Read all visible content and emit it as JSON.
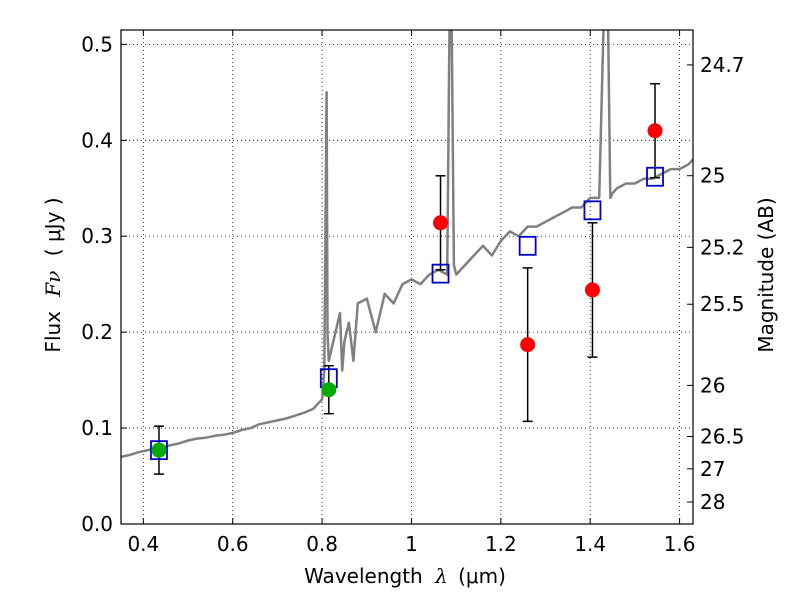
{
  "chart_data": {
    "type": "scatter",
    "xlabel_text": "Wavelength",
    "xlabel_symbol": "λ",
    "xlabel_unit": "(μm)",
    "ylabel_text": "Flux",
    "ylabel_symbol": "Fν",
    "ylabel_unit": "( μJy )",
    "y2label": "Magnitude (AB)",
    "xlim": [
      0.35,
      1.63
    ],
    "ylim": [
      0.0,
      0.515
    ],
    "grid": true,
    "x_ticks": [
      0.4,
      0.6,
      0.8,
      1.0,
      1.2,
      1.4,
      1.6
    ],
    "x_tick_labels": [
      "0.4",
      "0.6",
      "0.8",
      "1",
      "1.2",
      "1.4",
      "1.6"
    ],
    "y_ticks": [
      0.0,
      0.1,
      0.2,
      0.3,
      0.4,
      0.5
    ],
    "y_tick_labels": [
      "0.0",
      "0.1",
      "0.2",
      "0.3",
      "0.4",
      "0.5"
    ],
    "y2_ticks": [
      {
        "flux": 0.4786,
        "label": "24.7"
      },
      {
        "flux": 0.3631,
        "label": "25"
      },
      {
        "flux": 0.2884,
        "label": "25.2"
      },
      {
        "flux": 0.2291,
        "label": "25.5"
      },
      {
        "flux": 0.1445,
        "label": "26"
      },
      {
        "flux": 0.0912,
        "label": "26.5"
      },
      {
        "flux": 0.0575,
        "label": "27"
      },
      {
        "flux": 0.0229,
        "label": "28"
      }
    ],
    "colors": {
      "model": "#808080",
      "model_points": "#0000cc",
      "detections": "#ff0000",
      "reference": "#00aa00",
      "errorbar": "#000000"
    },
    "series": [
      {
        "role": "model spectrum",
        "x": [
          0.35,
          0.37,
          0.39,
          0.4,
          0.42,
          0.44,
          0.46,
          0.48,
          0.5,
          0.52,
          0.54,
          0.56,
          0.58,
          0.6,
          0.62,
          0.64,
          0.66,
          0.68,
          0.7,
          0.72,
          0.74,
          0.76,
          0.78,
          0.79,
          0.8,
          0.805,
          0.81,
          0.812,
          0.815,
          0.82,
          0.83,
          0.84,
          0.845,
          0.85,
          0.86,
          0.87,
          0.88,
          0.9,
          0.92,
          0.94,
          0.96,
          0.98,
          1.0,
          1.02,
          1.04,
          1.06,
          1.08,
          1.085,
          1.09,
          1.095,
          1.1,
          1.12,
          1.14,
          1.16,
          1.18,
          1.2,
          1.22,
          1.24,
          1.26,
          1.28,
          1.3,
          1.32,
          1.34,
          1.36,
          1.38,
          1.4,
          1.42,
          1.43,
          1.44,
          1.445,
          1.45,
          1.46,
          1.48,
          1.5,
          1.52,
          1.54,
          1.56,
          1.58,
          1.6,
          1.62,
          1.63
        ],
        "y": [
          0.07,
          0.072,
          0.075,
          0.076,
          0.078,
          0.08,
          0.082,
          0.084,
          0.087,
          0.089,
          0.09,
          0.092,
          0.093,
          0.095,
          0.098,
          0.1,
          0.104,
          0.106,
          0.108,
          0.11,
          0.113,
          0.116,
          0.12,
          0.125,
          0.13,
          0.16,
          0.45,
          0.2,
          0.17,
          0.18,
          0.2,
          0.22,
          0.16,
          0.19,
          0.21,
          0.17,
          0.23,
          0.235,
          0.2,
          0.24,
          0.23,
          0.25,
          0.255,
          0.25,
          0.26,
          0.265,
          0.26,
          0.52,
          0.52,
          0.27,
          0.26,
          0.27,
          0.28,
          0.29,
          0.28,
          0.295,
          0.305,
          0.3,
          0.31,
          0.31,
          0.315,
          0.32,
          0.325,
          0.33,
          0.33,
          0.34,
          0.34,
          0.52,
          0.52,
          0.34,
          0.345,
          0.35,
          0.355,
          0.355,
          0.36,
          0.36,
          0.365,
          0.37,
          0.37,
          0.375,
          0.38
        ]
      },
      {
        "role": "model band fluxes",
        "x": [
          0.435,
          0.815,
          1.065,
          1.26,
          1.405,
          1.545
        ],
        "y": [
          0.077,
          0.152,
          0.261,
          0.29,
          0.327,
          0.362
        ]
      },
      {
        "role": "detections",
        "x": [
          1.065,
          1.26,
          1.405,
          1.545
        ],
        "y": [
          0.314,
          0.187,
          0.244,
          0.41
        ],
        "yerr": [
          0.049,
          0.08,
          0.07,
          0.049
        ]
      },
      {
        "role": "reference bands",
        "x": [
          0.435,
          0.815
        ],
        "y": [
          0.077,
          0.14
        ],
        "yerr": [
          0.025,
          0.025
        ]
      }
    ]
  }
}
